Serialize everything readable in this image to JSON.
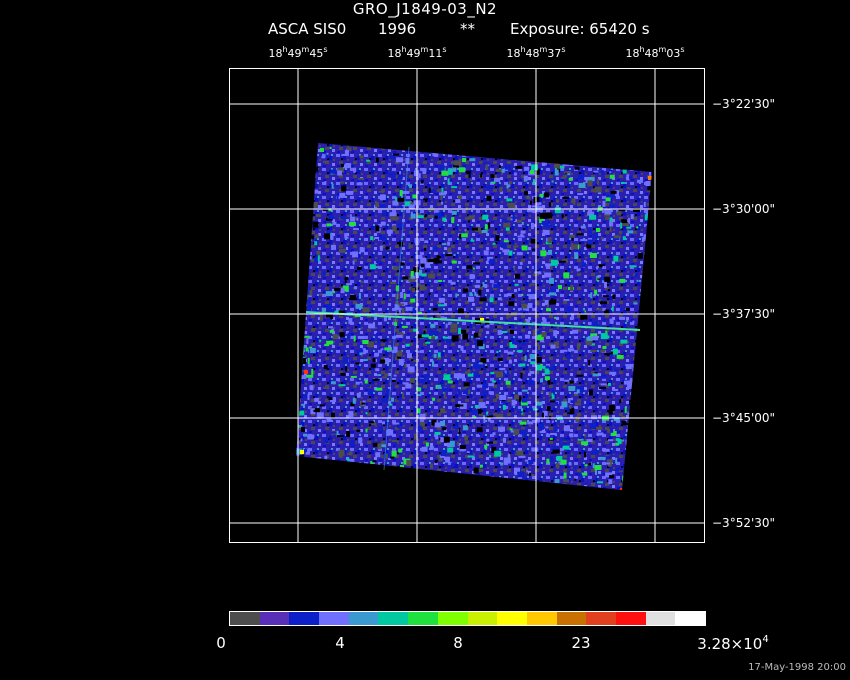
{
  "header": {
    "target": "GRO_J1849-03_N2",
    "instrument": "ASCA SIS0",
    "year": "1996",
    "marker": "**",
    "exposure": "Exposure: 65420 s"
  },
  "ra_ticks": [
    {
      "h": "18",
      "m": "49",
      "s": "45"
    },
    {
      "h": "18",
      "m": "49",
      "s": "11"
    },
    {
      "h": "18",
      "m": "48",
      "s": "37"
    },
    {
      "h": "18",
      "m": "48",
      "s": "03"
    }
  ],
  "dec_ticks": [
    "−3°22'30\"",
    "−3°30'00\"",
    "−3°37'30\"",
    "−3°45'00\"",
    "−3°52'30\""
  ],
  "colorbar": {
    "colors": [
      "#4d4d4d",
      "#5a2fb8",
      "#0c1fc8",
      "#7070ff",
      "#3a9ad0",
      "#00c8a0",
      "#20e040",
      "#80ff00",
      "#c8f000",
      "#ffff00",
      "#ffc800",
      "#c87000",
      "#e04020",
      "#ff1010",
      "#e0e0e0",
      "#ffffff"
    ],
    "labels": [
      "0",
      "4",
      "8",
      "23"
    ],
    "max_base": "3.28×10",
    "max_exp": "4"
  },
  "stamp": "17-May-1998 20:00"
}
